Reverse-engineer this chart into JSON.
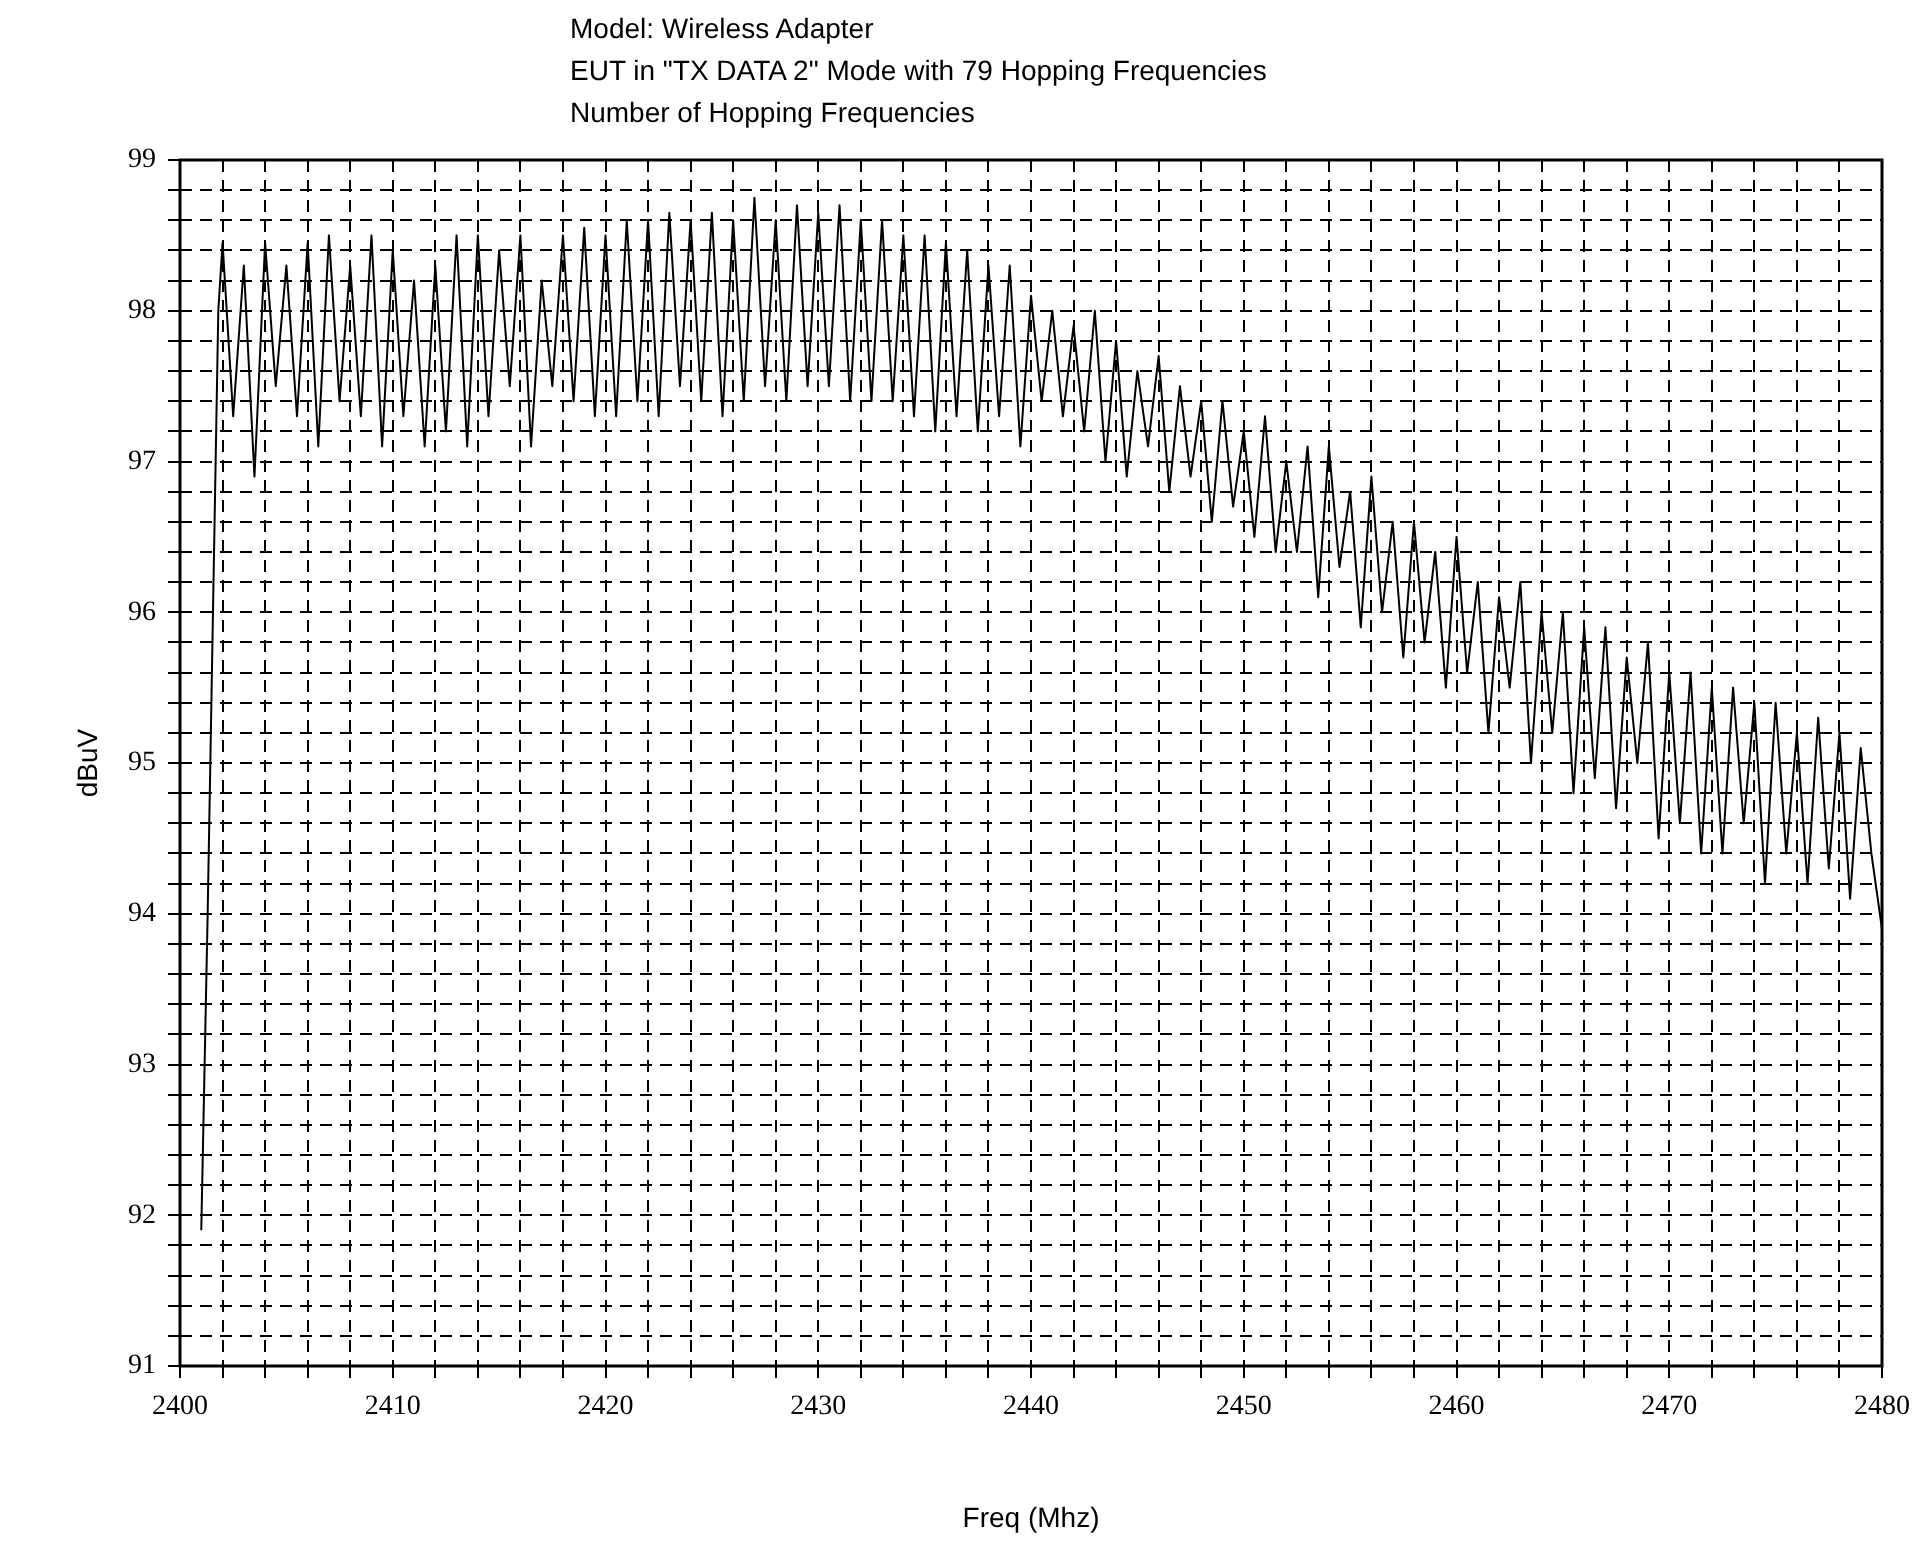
{
  "chart_data": {
    "type": "line",
    "title": "Model: Wireless Adapter",
    "subtitle": "EUT in \"TX DATA 2\" Mode with 79 Hopping Frequencies\nNumber of Hopping Frequencies",
    "xlabel": "Freq (Mhz)",
    "ylabel": "dBuV",
    "grid": true,
    "line_style": "solid",
    "xlim": [
      2400,
      2480
    ],
    "ylim": [
      91,
      99
    ],
    "xticks": [
      2400,
      {
        "value": 2402,
        "label": null
      },
      {
        "value": 2404,
        "label": null
      },
      {
        "value": 2406,
        "label": null
      },
      {
        "value": 2408,
        "label": null
      },
      2410,
      {
        "value": 2412,
        "label": null
      },
      {
        "value": 2414,
        "label": null
      },
      {
        "value": 2416,
        "label": null
      },
      {
        "value": 2418,
        "label": null
      },
      2420,
      {
        "value": 2422,
        "label": null
      },
      {
        "value": 2424,
        "label": null
      },
      {
        "value": 2426,
        "label": null
      },
      {
        "value": 2428,
        "label": null
      },
      2430,
      {
        "value": 2432,
        "label": null
      },
      {
        "value": 2434,
        "label": null
      },
      {
        "value": 2436,
        "label": null
      },
      {
        "value": 2438,
        "label": null
      },
      2440,
      {
        "value": 2442,
        "label": null
      },
      {
        "value": 2444,
        "label": null
      },
      {
        "value": 2446,
        "label": null
      },
      {
        "value": 2448,
        "label": null
      },
      2450,
      {
        "value": 2452,
        "label": null
      },
      {
        "value": 2454,
        "label": null
      },
      {
        "value": 2456,
        "label": null
      },
      {
        "value": 2458,
        "label": null
      },
      2460,
      {
        "value": 2462,
        "label": null
      },
      {
        "value": 2464,
        "label": null
      },
      {
        "value": 2466,
        "label": null
      },
      {
        "value": 2468,
        "label": null
      },
      2470,
      {
        "value": 2472,
        "label": null
      },
      {
        "value": 2474,
        "label": null
      },
      {
        "value": 2476,
        "label": null
      },
      {
        "value": 2478,
        "label": null
      },
      2480
    ],
    "yticks": [
      91,
      {
        "value": 91.2,
        "label": null
      },
      {
        "value": 91.4,
        "label": null
      },
      {
        "value": 91.6,
        "label": null
      },
      {
        "value": 91.8,
        "label": null
      },
      92,
      {
        "value": 92.2,
        "label": null
      },
      {
        "value": 92.4,
        "label": null
      },
      {
        "value": 92.6,
        "label": null
      },
      {
        "value": 92.8,
        "label": null
      },
      93,
      {
        "value": 93.2,
        "label": null
      },
      {
        "value": 93.4,
        "label": null
      },
      {
        "value": 93.6,
        "label": null
      },
      {
        "value": 93.8,
        "label": null
      },
      94,
      {
        "value": 94.2,
        "label": null
      },
      {
        "value": 94.4,
        "label": null
      },
      {
        "value": 94.6,
        "label": null
      },
      {
        "value": 94.8,
        "label": null
      },
      95,
      {
        "value": 95.2,
        "label": null
      },
      {
        "value": 95.4,
        "label": null
      },
      {
        "value": 95.6,
        "label": null
      },
      {
        "value": 95.8,
        "label": null
      },
      96,
      {
        "value": 96.2,
        "label": null
      },
      {
        "value": 96.4,
        "label": null
      },
      {
        "value": 96.6,
        "label": null
      },
      {
        "value": 96.8,
        "label": null
      },
      97,
      {
        "value": 97.2,
        "label": null
      },
      {
        "value": 97.4,
        "label": null
      },
      {
        "value": 97.6,
        "label": null
      },
      {
        "value": 97.8,
        "label": null
      },
      98,
      {
        "value": 98.2,
        "label": null
      },
      {
        "value": 98.4,
        "label": null
      },
      {
        "value": 98.6,
        "label": null
      },
      {
        "value": 98.8,
        "label": null
      },
      99
    ],
    "x": [
      2401,
      2401.3,
      2401.8,
      2402,
      2402.5,
      2403,
      2403.5,
      2404,
      2404.5,
      2405,
      2405.5,
      2406,
      2406.5,
      2407,
      2407.5,
      2408,
      2408.5,
      2409,
      2409.5,
      2410,
      2410.5,
      2411,
      2411.5,
      2412,
      2412.5,
      2413,
      2413.5,
      2414,
      2414.5,
      2415,
      2415.5,
      2416,
      2416.5,
      2417,
      2417.5,
      2418,
      2418.5,
      2419,
      2419.5,
      2420,
      2420.5,
      2421,
      2421.5,
      2422,
      2422.5,
      2423,
      2423.5,
      2424,
      2424.5,
      2425,
      2425.5,
      2426,
      2426.5,
      2427,
      2427.5,
      2428,
      2428.5,
      2429,
      2429.5,
      2430,
      2430.5,
      2431,
      2431.5,
      2432,
      2432.5,
      2433,
      2433.5,
      2434,
      2434.5,
      2435,
      2435.5,
      2436,
      2436.5,
      2437,
      2437.5,
      2438,
      2438.5,
      2439,
      2439.5,
      2440,
      2440.5,
      2441,
      2441.5,
      2442,
      2442.5,
      2443,
      2443.5,
      2444,
      2444.5,
      2445,
      2445.5,
      2446,
      2446.5,
      2447,
      2447.5,
      2448,
      2448.5,
      2449,
      2449.5,
      2450,
      2450.5,
      2451,
      2451.5,
      2452,
      2452.5,
      2453,
      2453.5,
      2454,
      2454.5,
      2455,
      2455.5,
      2456,
      2456.5,
      2457,
      2457.5,
      2458,
      2458.5,
      2459,
      2459.5,
      2460,
      2460.5,
      2461,
      2461.5,
      2462,
      2462.5,
      2463,
      2463.5,
      2464,
      2464.5,
      2465,
      2465.5,
      2466,
      2466.5,
      2467,
      2467.5,
      2468,
      2468.5,
      2469,
      2469.5,
      2470,
      2470.5,
      2471,
      2471.5,
      2472,
      2472.5,
      2473,
      2473.5,
      2474,
      2474.5,
      2475,
      2475.5,
      2476,
      2476.5,
      2477,
      2477.5,
      2478,
      2478.5,
      2479,
      2479.5,
      2480
    ],
    "series": [
      {
        "color": "#000000",
        "values": [
          91.9,
          94.0,
          98.0,
          98.45,
          97.3,
          98.3,
          96.9,
          98.45,
          97.5,
          98.3,
          97.3,
          98.45,
          97.1,
          98.5,
          97.4,
          98.3,
          97.3,
          98.5,
          97.1,
          98.4,
          97.3,
          98.2,
          97.1,
          98.3,
          97.2,
          98.5,
          97.1,
          98.5,
          97.3,
          98.4,
          97.5,
          98.5,
          97.1,
          98.2,
          97.5,
          98.5,
          97.4,
          98.55,
          97.3,
          98.5,
          97.3,
          98.6,
          97.4,
          98.6,
          97.3,
          98.65,
          97.5,
          98.6,
          97.4,
          98.65,
          97.3,
          98.6,
          97.4,
          98.75,
          97.5,
          98.6,
          97.4,
          98.7,
          97.5,
          98.65,
          97.5,
          98.7,
          97.4,
          98.6,
          97.4,
          98.6,
          97.4,
          98.5,
          97.3,
          98.5,
          97.2,
          98.45,
          97.3,
          98.4,
          97.2,
          98.3,
          97.3,
          98.3,
          97.1,
          98.1,
          97.4,
          98.0,
          97.3,
          97.9,
          97.2,
          98.0,
          97.0,
          97.8,
          96.9,
          97.6,
          97.1,
          97.7,
          96.8,
          97.5,
          96.9,
          97.4,
          96.6,
          97.4,
          96.7,
          97.2,
          96.5,
          97.3,
          96.4,
          97.0,
          96.4,
          97.1,
          96.1,
          97.1,
          96.3,
          96.8,
          95.9,
          96.9,
          96.0,
          96.6,
          95.7,
          96.6,
          95.8,
          96.4,
          95.5,
          96.5,
          95.6,
          96.2,
          95.2,
          96.1,
          95.5,
          96.2,
          95.0,
          96.0,
          95.2,
          96.0,
          94.8,
          95.9,
          94.9,
          95.9,
          94.7,
          95.7,
          95.0,
          95.8,
          94.5,
          95.6,
          94.6,
          95.6,
          94.4,
          95.5,
          94.4,
          95.5,
          94.6,
          95.4,
          94.2,
          95.4,
          94.4,
          95.2,
          94.2,
          95.3,
          94.3,
          95.2,
          94.1,
          95.1,
          94.4,
          93.9
        ]
      }
    ]
  }
}
